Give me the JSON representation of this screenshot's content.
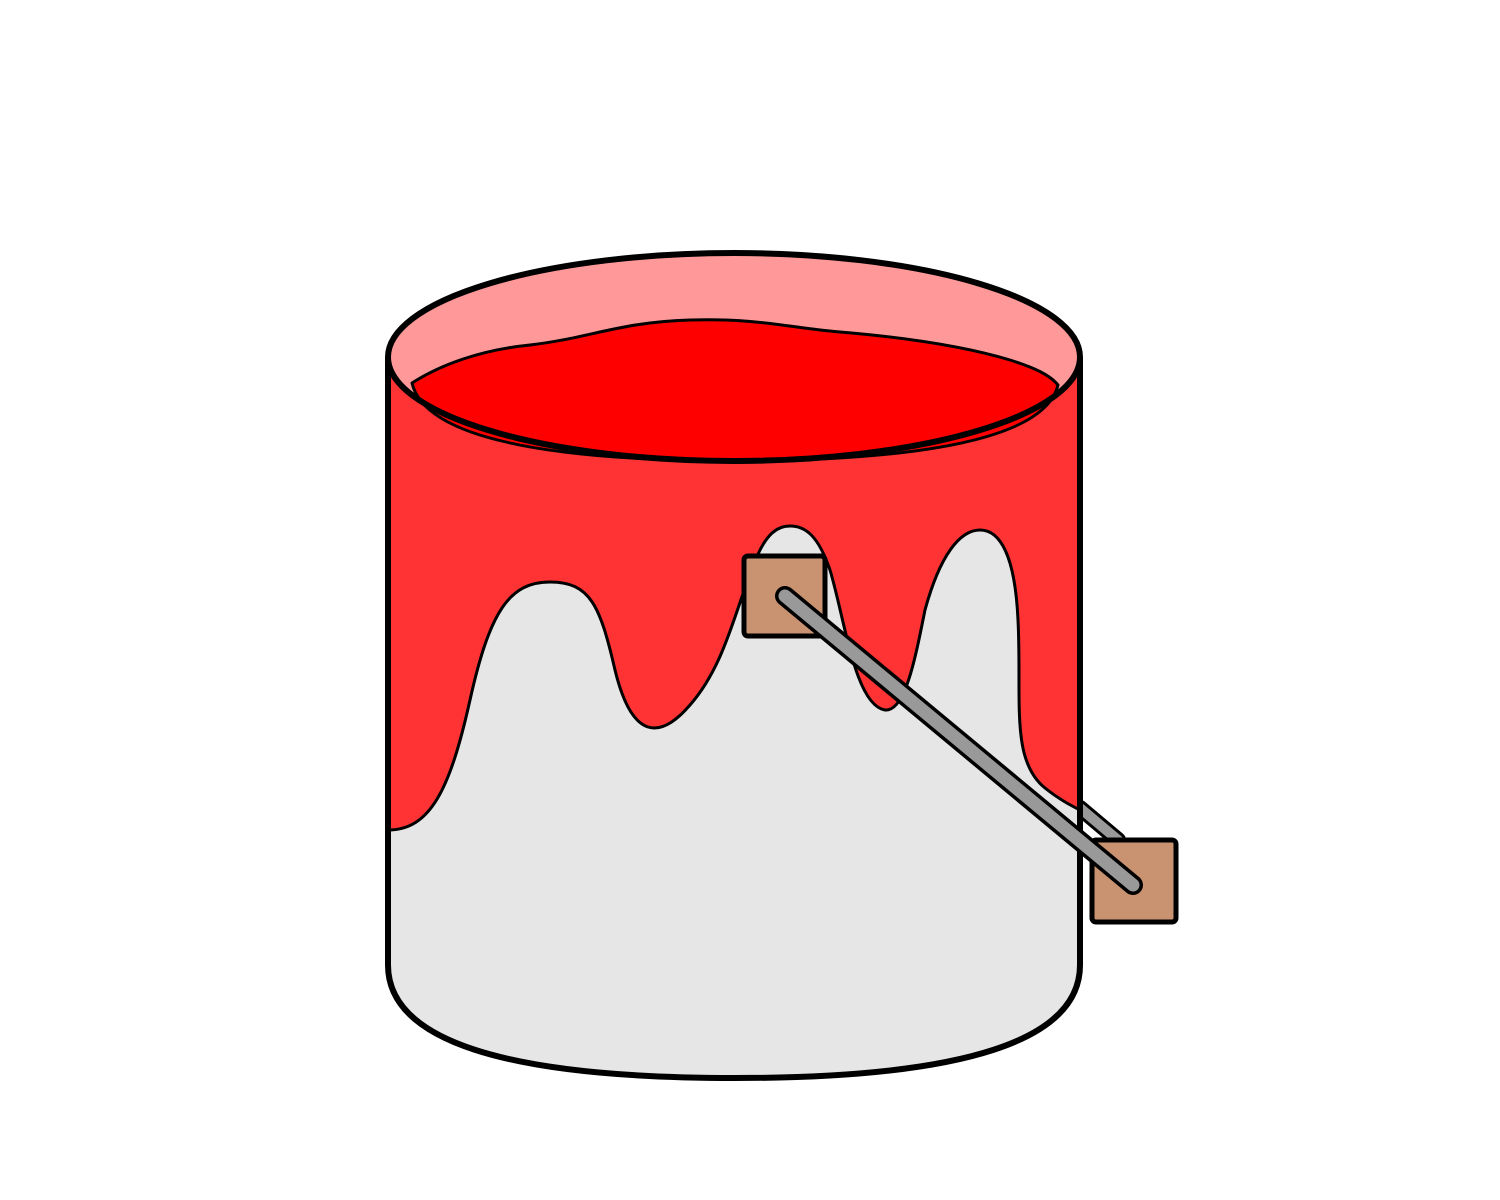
{
  "illustration": {
    "subject": "paint-bucket",
    "colors": {
      "background": "#ffffff",
      "bucket_body": "#e6e6e6",
      "paint_drip": "#ff3333",
      "paint_surface": "#ff0000",
      "bucket_interior": "#ff9999",
      "bracket": "#c99372",
      "handle": "#999999",
      "outline": "#000000"
    },
    "icons": [
      "paint-bucket-icon",
      "bucket-handle-icon",
      "handle-bracket-icon"
    ]
  }
}
